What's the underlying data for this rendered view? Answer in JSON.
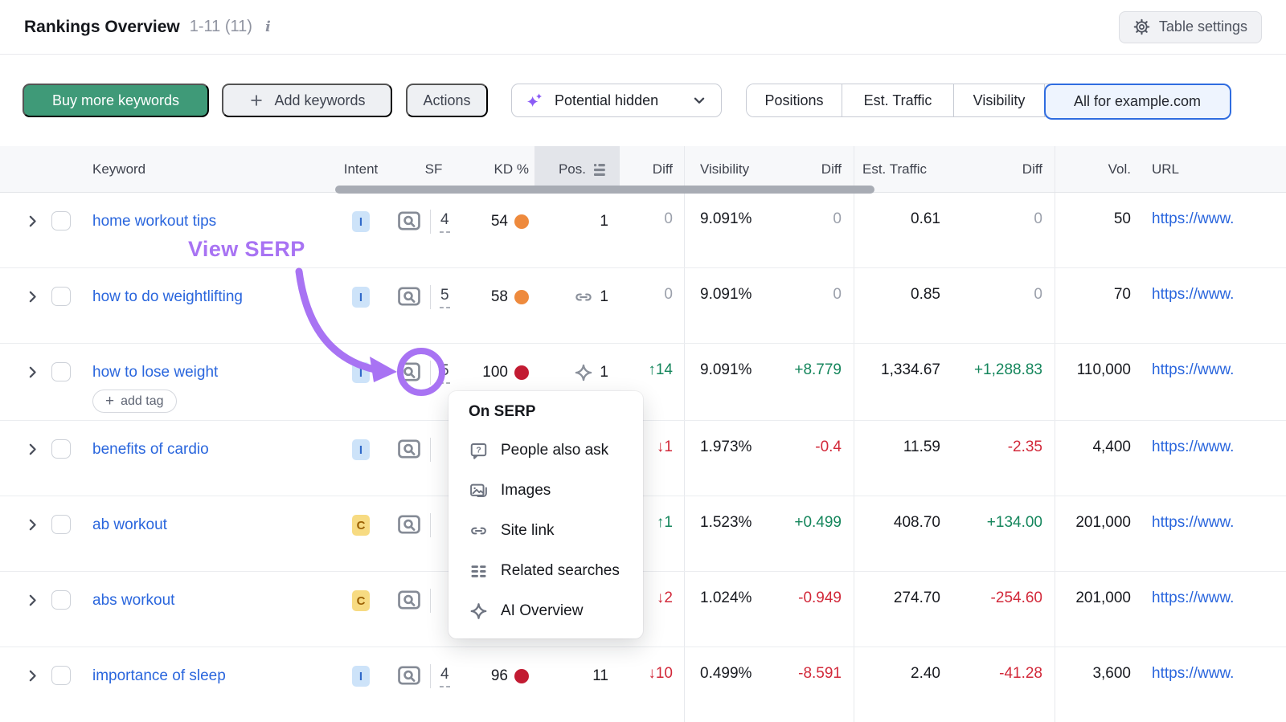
{
  "header": {
    "title": "Rankings Overview",
    "count": "1-11 (11)",
    "info_icon": "i",
    "table_settings_label": "Table settings"
  },
  "toolbar": {
    "buy_more_label": "Buy more keywords",
    "add_keywords_label": "Add keywords",
    "actions_label": "Actions",
    "potential_label": "Potential hidden",
    "segments": [
      {
        "label": "Positions",
        "selected": false
      },
      {
        "label": "Est. Traffic",
        "selected": false
      },
      {
        "label": "Visibility",
        "selected": false
      },
      {
        "label": "All for example.com",
        "selected": true
      }
    ]
  },
  "table": {
    "columns": {
      "keyword": "Keyword",
      "intent": "Intent",
      "sf": "SF",
      "kd": "KD %",
      "pos": "Pos.",
      "diff_pos": "Diff",
      "visibility": "Visibility",
      "diff_vis": "Diff",
      "traffic": "Est. Traffic",
      "diff_traffic": "Diff",
      "volume": "Vol.",
      "url": "URL"
    },
    "add_tag": {
      "plus": "+",
      "label": "add tag"
    },
    "rows": [
      {
        "keyword": "home workout tips",
        "intent": "I",
        "sf": "4",
        "kd": "54",
        "kd_level": "orange",
        "pos": "1",
        "pos_icon": "",
        "pos_diff": {
          "text": "0",
          "tone": "zero"
        },
        "visibility": "9.091%",
        "vis_diff": {
          "text": "0",
          "tone": "zero"
        },
        "traffic": "0.61",
        "traffic_diff": {
          "text": "0",
          "tone": "zero"
        },
        "volume": "50",
        "url": "https://www.",
        "add_tag": false,
        "serp_circled": false,
        "metrics_hidden": false
      },
      {
        "keyword": "how to do weightlifting",
        "intent": "I",
        "sf": "5",
        "kd": "58",
        "kd_level": "orange",
        "pos": "1",
        "pos_icon": "site-link-icon",
        "pos_diff": {
          "text": "0",
          "tone": "zero"
        },
        "visibility": "9.091%",
        "vis_diff": {
          "text": "0",
          "tone": "zero"
        },
        "traffic": "0.85",
        "traffic_diff": {
          "text": "0",
          "tone": "zero"
        },
        "volume": "70",
        "url": "https://www.",
        "add_tag": false,
        "serp_circled": false,
        "metrics_hidden": false
      },
      {
        "keyword": "how to lose weight",
        "intent": "I",
        "sf": "5",
        "kd": "100",
        "kd_level": "red",
        "pos": "1",
        "pos_icon": "ai-overview-icon",
        "pos_diff": {
          "text": "↑14",
          "tone": "up"
        },
        "visibility": "9.091%",
        "vis_diff": {
          "text": "+8.779",
          "tone": "up"
        },
        "traffic": "1,334.67",
        "traffic_diff": {
          "text": "+1,288.83",
          "tone": "up"
        },
        "volume": "110,000",
        "url": "https://www.",
        "add_tag": true,
        "serp_circled": true,
        "metrics_hidden": false
      },
      {
        "keyword": "benefits of cardio",
        "intent": "I",
        "sf": "",
        "kd": "",
        "kd_level": "",
        "pos": "",
        "pos_icon": "",
        "pos_diff": {
          "text": "↓1",
          "tone": "down"
        },
        "visibility": "1.973%",
        "vis_diff": {
          "text": "-0.4",
          "tone": "down"
        },
        "traffic": "11.59",
        "traffic_diff": {
          "text": "-2.35",
          "tone": "down"
        },
        "volume": "4,400",
        "url": "https://www.",
        "add_tag": false,
        "serp_circled": false,
        "metrics_hidden": true
      },
      {
        "keyword": "ab workout",
        "intent": "C",
        "sf": "",
        "kd": "",
        "kd_level": "",
        "pos": "",
        "pos_icon": "",
        "pos_diff": {
          "text": "↑1",
          "tone": "up"
        },
        "visibility": "1.523%",
        "vis_diff": {
          "text": "+0.499",
          "tone": "up"
        },
        "traffic": "408.70",
        "traffic_diff": {
          "text": "+134.00",
          "tone": "up"
        },
        "volume": "201,000",
        "url": "https://www.",
        "add_tag": false,
        "serp_circled": false,
        "metrics_hidden": true
      },
      {
        "keyword": "abs workout",
        "intent": "C",
        "sf": "",
        "kd": "",
        "kd_level": "",
        "pos": "",
        "pos_icon": "",
        "pos_diff": {
          "text": "↓2",
          "tone": "down"
        },
        "visibility": "1.024%",
        "vis_diff": {
          "text": "-0.949",
          "tone": "down"
        },
        "traffic": "274.70",
        "traffic_diff": {
          "text": "-254.60",
          "tone": "down"
        },
        "volume": "201,000",
        "url": "https://www.",
        "add_tag": false,
        "serp_circled": false,
        "metrics_hidden": true
      },
      {
        "keyword": "importance of sleep",
        "intent": "I",
        "sf": "4",
        "kd": "96",
        "kd_level": "red",
        "pos": "11",
        "pos_icon": "",
        "pos_diff": {
          "text": "↓10",
          "tone": "down"
        },
        "visibility": "0.499%",
        "vis_diff": {
          "text": "-8.591",
          "tone": "down"
        },
        "traffic": "2.40",
        "traffic_diff": {
          "text": "-41.28",
          "tone": "down"
        },
        "volume": "3,600",
        "url": "https://www.",
        "add_tag": false,
        "serp_circled": false,
        "metrics_hidden": false
      }
    ]
  },
  "popup": {
    "title": "On SERP",
    "items": [
      {
        "icon": "people-also-ask-icon",
        "label": "People also ask"
      },
      {
        "icon": "images-icon",
        "label": "Images"
      },
      {
        "icon": "site-link-icon",
        "label": "Site link"
      },
      {
        "icon": "related-searches-icon",
        "label": "Related searches"
      },
      {
        "icon": "ai-overview-icon",
        "label": "AI Overview"
      }
    ]
  },
  "annotation": {
    "label": "View SERP"
  },
  "colors": {
    "accent_green": "#3f9a78",
    "link_blue": "#2a66dd",
    "positive_green": "#15865c",
    "negative_red": "#d2293a",
    "neutral_gray": "#9ba0ab",
    "annotation_purple": "#a873f3",
    "selected_segment_blue": "#2f6ce0",
    "kd_orange": "#ee8a3d",
    "kd_red": "#c21b32",
    "intent_i_bg": "#cde3f9",
    "intent_i_fg": "#3069c9",
    "intent_c_bg": "#f7db82",
    "intent_c_fg": "#9c6104"
  }
}
